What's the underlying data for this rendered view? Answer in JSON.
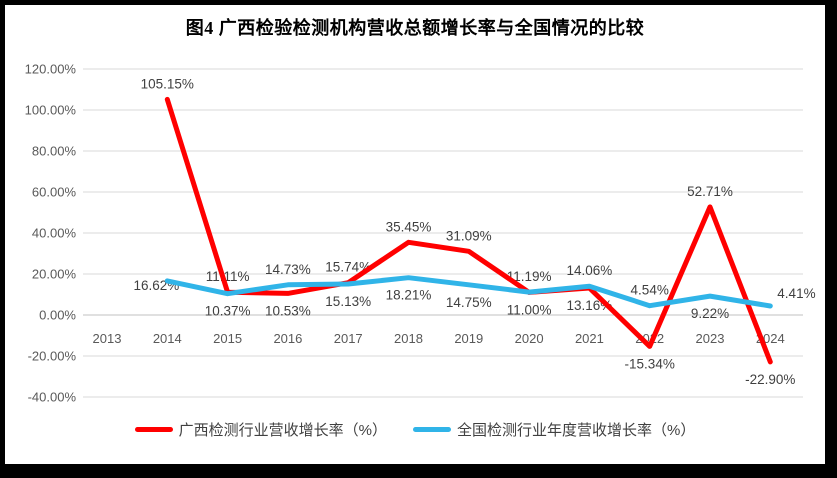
{
  "chart_data": {
    "type": "line",
    "title": "图4 广西检验检测机构营收总额增长率与全国情况的比较",
    "categories": [
      "2013",
      "2014",
      "2015",
      "2016",
      "2017",
      "2018",
      "2019",
      "2020",
      "2021",
      "2022",
      "2023",
      "2024"
    ],
    "y_axis": {
      "min": -40,
      "max": 120,
      "step": 20,
      "tick_values": [
        120,
        100,
        80,
        60,
        40,
        20,
        0,
        -20,
        -40
      ],
      "tick_labels": [
        "120.00%",
        "100.00%",
        "80.00%",
        "60.00%",
        "40.00%",
        "20.00%",
        "0.00%",
        "-20.00%",
        "-40.00%"
      ]
    },
    "grid": true,
    "legend_position": "bottom",
    "series": [
      {
        "name": "广西检测行业营收增长率（%）",
        "color": "#FF0000",
        "values": [
          null,
          105.15,
          11.11,
          10.53,
          15.74,
          35.45,
          31.09,
          11.0,
          13.16,
          -15.34,
          52.71,
          -22.9
        ],
        "point_labels": [
          null,
          "105.15%",
          "11.11%",
          "10.53%",
          "15.74%",
          "35.45%",
          "31.09%",
          "11.00%",
          "13.16%",
          "-15.34%",
          "52.71%",
          "-22.90%"
        ],
        "label_side": [
          null,
          "above",
          "above",
          "below",
          "above",
          "above",
          "above",
          "below",
          "below",
          "below",
          "above",
          "below"
        ]
      },
      {
        "name": "全国检测行业年度营收增长率（%）",
        "color": "#30B4E8",
        "values": [
          null,
          16.62,
          10.37,
          14.73,
          15.13,
          18.21,
          14.75,
          11.19,
          14.06,
          4.54,
          9.22,
          4.41
        ],
        "point_labels": [
          null,
          "16.62%",
          "10.37%",
          "14.73%",
          "15.13%",
          "18.21%",
          "14.75%",
          "11.19%",
          "14.06%",
          "4.54%",
          "9.22%",
          "4.41%"
        ],
        "label_side": [
          null,
          "left",
          "below",
          "above",
          "below",
          "below",
          "below",
          "above",
          "above",
          "above",
          "below",
          "right"
        ]
      }
    ],
    "grid_color": "#D9D9D9",
    "zero_line_color": "#C0C0C0",
    "axis_color": "#595959",
    "label_color": "#404040"
  }
}
